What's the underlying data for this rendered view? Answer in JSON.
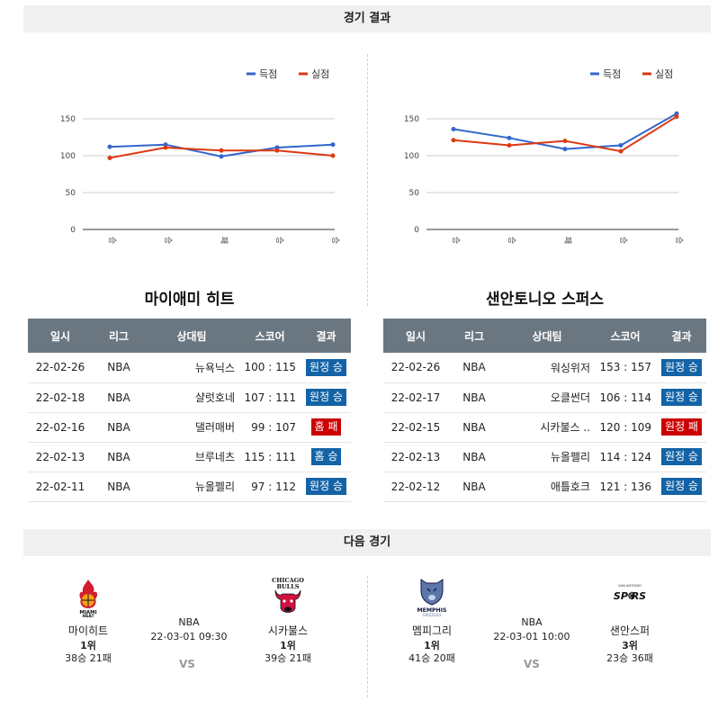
{
  "sections": {
    "results_title": "경기 결과",
    "next_title": "다음 경기"
  },
  "legend": {
    "scored": "득점",
    "allowed": "실점"
  },
  "colors": {
    "scored": "#3366cc",
    "allowed": "#dc3912",
    "win_badge": "#1363a6",
    "loss_badge": "#cc0000",
    "header": "#6b7780"
  },
  "chart_data": [
    {
      "type": "line",
      "categories": [
        "승",
        "승",
        "패",
        "승",
        "승"
      ],
      "series": [
        {
          "name": "득점",
          "values": [
            112,
            115,
            99,
            111,
            115
          ]
        },
        {
          "name": "실점",
          "values": [
            97,
            111,
            107,
            107,
            100
          ]
        }
      ],
      "yticks": [
        "0",
        "50",
        "100",
        "150"
      ],
      "ylim": [
        0,
        150
      ],
      "legend": "top-right",
      "grid": true
    },
    {
      "type": "line",
      "categories": [
        "승",
        "승",
        "패",
        "승",
        "승"
      ],
      "series": [
        {
          "name": "득점",
          "values": [
            136,
            124,
            109,
            114,
            157
          ]
        },
        {
          "name": "실점",
          "values": [
            121,
            114,
            120,
            106,
            153
          ]
        }
      ],
      "yticks": [
        "0",
        "50",
        "100",
        "150"
      ],
      "ylim": [
        0,
        150
      ],
      "legend": "top-right",
      "grid": true
    }
  ],
  "headers": [
    "일시",
    "리그",
    "상대팀",
    "스코어",
    "결과"
  ],
  "teams": [
    {
      "name": "마이애미 히트",
      "games": [
        {
          "date": "22-02-26",
          "league": "NBA",
          "opponent": "뉴욕닉스",
          "score": "100 : 115",
          "result": "원정 승",
          "win": true
        },
        {
          "date": "22-02-18",
          "league": "NBA",
          "opponent": "샬럿호네",
          "score": "107 : 111",
          "result": "원정 승",
          "win": true
        },
        {
          "date": "22-02-16",
          "league": "NBA",
          "opponent": "댈러매버",
          "score": "99 : 107",
          "result": "홈 패",
          "win": false
        },
        {
          "date": "22-02-13",
          "league": "NBA",
          "opponent": "브루네츠",
          "score": "115 : 111",
          "result": "홈 승",
          "win": true
        },
        {
          "date": "22-02-11",
          "league": "NBA",
          "opponent": "뉴올펠리",
          "score": "97 : 112",
          "result": "원정 승",
          "win": true
        }
      ]
    },
    {
      "name": "샌안토니오 스퍼스",
      "games": [
        {
          "date": "22-02-26",
          "league": "NBA",
          "opponent": "워싱위저",
          "score": "153 : 157",
          "result": "원정 승",
          "win": true
        },
        {
          "date": "22-02-17",
          "league": "NBA",
          "opponent": "오클썬더",
          "score": "106 : 114",
          "result": "원정 승",
          "win": true
        },
        {
          "date": "22-02-15",
          "league": "NBA",
          "opponent": "시카불스 ..",
          "score": "120 : 109",
          "result": "원정 패",
          "win": false
        },
        {
          "date": "22-02-13",
          "league": "NBA",
          "opponent": "뉴올펠리",
          "score": "114 : 124",
          "result": "원정 승",
          "win": true
        },
        {
          "date": "22-02-12",
          "league": "NBA",
          "opponent": "애틀호크",
          "score": "121 : 136",
          "result": "원정 승",
          "win": true
        }
      ]
    }
  ],
  "next_games": [
    {
      "league": "NBA",
      "datetime": "22-03-01 09:30",
      "vs": "VS",
      "home": {
        "name": "마이히트",
        "rank": "1위",
        "record": "38승 21패",
        "logo_text": "MIAMI HEAT",
        "icon": "heat-logo-icon"
      },
      "away": {
        "name": "시카불스",
        "rank": "1위",
        "record": "39승 21패",
        "logo_text": "CHICAGO BULLS",
        "icon": "bulls-logo-icon"
      }
    },
    {
      "league": "NBA",
      "datetime": "22-03-01 10:00",
      "vs": "VS",
      "home": {
        "name": "멤피그리",
        "rank": "1위",
        "record": "41승 20패",
        "logo_text": "MEMPHIS GRIZZLIES",
        "icon": "grizzlies-logo-icon"
      },
      "away": {
        "name": "샌안스퍼",
        "rank": "3위",
        "record": "23승 36패",
        "logo_text": "SAN ANTONIO SPURS",
        "icon": "spurs-logo-icon"
      }
    }
  ]
}
